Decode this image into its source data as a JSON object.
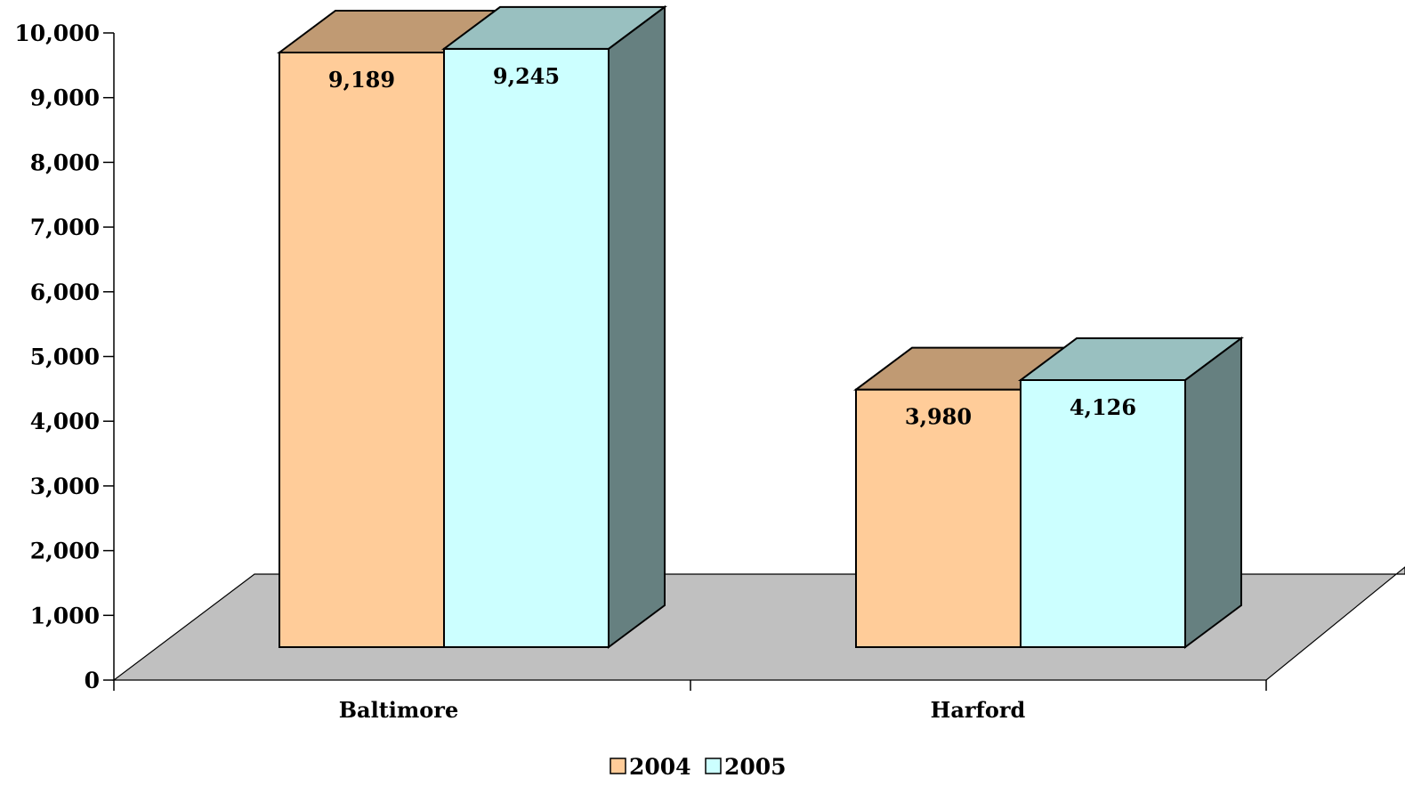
{
  "chart_data": {
    "type": "bar",
    "style": "3d-clustered-column",
    "categories": [
      "Baltimore",
      "Harford"
    ],
    "series": [
      {
        "name": "2004",
        "values": [
          9189,
          3980
        ],
        "data_labels": [
          "9,189",
          "3,980"
        ]
      },
      {
        "name": "2005",
        "values": [
          9245,
          4126
        ],
        "data_labels": [
          "9,245",
          "4,126"
        ]
      }
    ],
    "ylim": [
      0,
      10000
    ],
    "yticks": [
      0,
      1000,
      2000,
      3000,
      4000,
      5000,
      6000,
      7000,
      8000,
      9000,
      10000
    ],
    "ytick_labels": [
      "0",
      "1,000",
      "2,000",
      "3,000",
      "4,000",
      "5,000",
      "6,000",
      "7,000",
      "8,000",
      "9,000",
      "10,000"
    ],
    "grid": false,
    "legend_position": "bottom",
    "colors": {
      "2004": {
        "front": "#FFCC99",
        "top": "#C09A73",
        "side": "#8C7055"
      },
      "2005": {
        "front": "#CCFFFF",
        "top": "#99C0C0",
        "side": "#668080"
      },
      "floor": "#C0C0C0"
    }
  }
}
